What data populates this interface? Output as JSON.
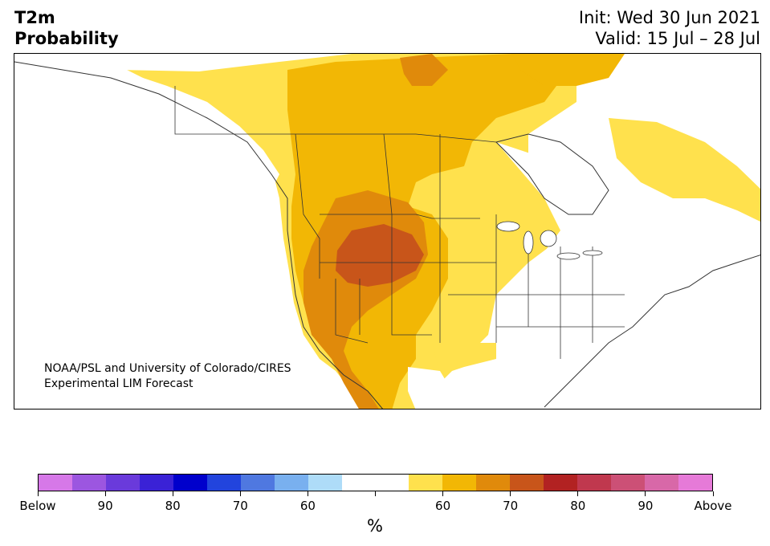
{
  "header": {
    "title_line1": "T2m",
    "title_line2": "Probability",
    "init": "Init: Wed 30 Jun 2021",
    "valid": "Valid: 15 Jul – 28 Jul"
  },
  "map": {
    "region": "North America",
    "credit_line1": "NOAA/PSL and University of Colorado/CIRES",
    "credit_line2": "Experimental LIM Forecast",
    "colors": {
      "above_55": "#ffe14d",
      "above_60": "#f2b705",
      "above_65": "#e08a0b",
      "above_70": "#c8551a",
      "land": "#ffffff",
      "border": "#333333"
    }
  },
  "colorbar": {
    "colors": [
      "#d678e8",
      "#9c56e0",
      "#6a3adb",
      "#3a22d6",
      "#0000cc",
      "#2244dd",
      "#4f78e0",
      "#79b0ef",
      "#aedcf8",
      "#ffffff",
      "#ffffff",
      "#ffe14d",
      "#f2b705",
      "#e08a0b",
      "#c8551a",
      "#b22222",
      "#c0384e",
      "#cc5076",
      "#d868a8",
      "#e67ad8"
    ],
    "labels": [
      "Below",
      "90",
      "80",
      "70",
      "60",
      "",
      "60",
      "70",
      "80",
      "90",
      "Above"
    ],
    "units": "%"
  }
}
